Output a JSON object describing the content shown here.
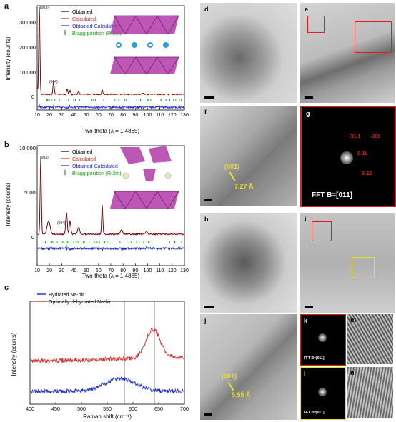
{
  "panels": {
    "a": {
      "letter": "a",
      "ylabel": "Intensity (counts)",
      "xlabel": "Two-theta (λ = 1.4865)",
      "yticks": [
        "30,000",
        "20,000",
        "10,000",
        "0"
      ],
      "xticks": [
        "10",
        "20",
        "30",
        "40",
        "50",
        "60",
        "70",
        "80",
        "90",
        "100",
        "110",
        "120",
        "130"
      ],
      "legend": [
        "Obtained",
        "Calculated",
        "Obtained-Calculated",
        "Bragg position (R-3m)"
      ],
      "peak_label": "(004)",
      "peak_label_top": "(003)"
    },
    "b": {
      "letter": "b",
      "ylabel": "Intensity (counts)",
      "xlabel": "Two-theta (λ = 1.4865)",
      "yticks": [
        "10,000",
        "5000",
        "0"
      ],
      "xticks": [
        "10",
        "20",
        "30",
        "40",
        "50",
        "60",
        "70",
        "80",
        "90",
        "100",
        "110",
        "120",
        "130"
      ],
      "legend": [
        "Obtained",
        "Calculated",
        "Obtained-Calculated",
        "Bragg position (R-3m)"
      ],
      "peak_label": "(004)",
      "peak_label_top": "(003)"
    },
    "c": {
      "letter": "c",
      "ylabel": "Intensity (counts)",
      "xlabel": "Raman shift (cm⁻¹)",
      "xticks": [
        "400",
        "450",
        "500",
        "550",
        "600",
        "650",
        "700"
      ],
      "legend": [
        "Hydrated Na-bir",
        "Optimally dehydrated Na-bir"
      ]
    },
    "d": {
      "letter": "d"
    },
    "e": {
      "letter": "e"
    },
    "f": {
      "letter": "f",
      "plane": "(001)",
      "spacing": "7.27 Å"
    },
    "g": {
      "letter": "g",
      "caption": "FFT    B=[011]",
      "spots": [
        "-31-1",
        "-300",
        "0-11",
        "3-22"
      ]
    },
    "h": {
      "letter": "h"
    },
    "i": {
      "letter": "i"
    },
    "j": {
      "letter": "j",
      "plane": "(001)",
      "spacing": "5.55 Å"
    },
    "k": {
      "letter": "k",
      "caption": "FFT  B=[011]"
    },
    "l": {
      "letter": "l",
      "caption": "FFT  B=[011]"
    },
    "m": {
      "letter": "m"
    },
    "n": {
      "letter": "n"
    }
  },
  "colors": {
    "obtained": "#000000",
    "calculated": "#e02020",
    "difference": "#1a2ad8",
    "bragg": "#1a9a1a",
    "hydrated": "#1a2ad8",
    "dehydrated": "#e02020",
    "box_red": "#e02020",
    "box_yellow": "#e8e020"
  }
}
